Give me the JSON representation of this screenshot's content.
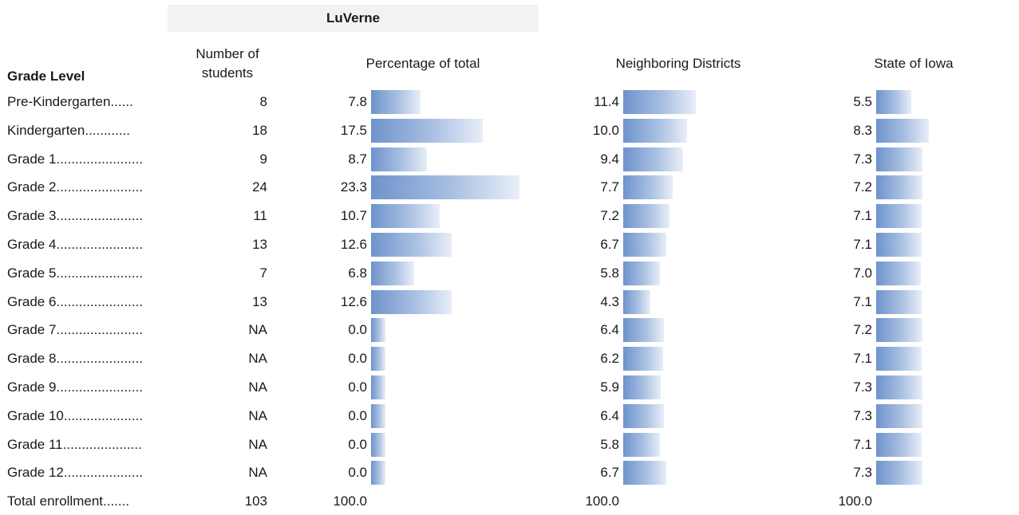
{
  "header": {
    "group_title": "LuVerne",
    "grade_level": "Grade Level",
    "students": "Number of students",
    "percent": "Percentage of total",
    "neighbors": "Neighboring Districts",
    "state": "State of Iowa"
  },
  "bar_color": "#6e93cc",
  "chart_data": {
    "type": "table",
    "columns": [
      "Grade Level",
      "Number of students",
      "Percentage of total",
      "Neighboring Districts",
      "State of Iowa"
    ],
    "rows": [
      {
        "label": "Pre-Kindergarten......",
        "students": "8",
        "pct": 7.8,
        "pct_text": "7.8",
        "neighbor": 11.4,
        "neighbor_text": "11.4",
        "state": 5.5,
        "state_text": "5.5"
      },
      {
        "label": "Kindergarten............",
        "students": "18",
        "pct": 17.5,
        "pct_text": "17.5",
        "neighbor": 10.0,
        "neighbor_text": "10.0",
        "state": 8.3,
        "state_text": "8.3"
      },
      {
        "label": "Grade 1.......................",
        "students": "9",
        "pct": 8.7,
        "pct_text": "8.7",
        "neighbor": 9.4,
        "neighbor_text": "9.4",
        "state": 7.3,
        "state_text": "7.3"
      },
      {
        "label": "Grade 2.......................",
        "students": "24",
        "pct": 23.3,
        "pct_text": "23.3",
        "neighbor": 7.7,
        "neighbor_text": "7.7",
        "state": 7.2,
        "state_text": "7.2"
      },
      {
        "label": "Grade 3.......................",
        "students": "11",
        "pct": 10.7,
        "pct_text": "10.7",
        "neighbor": 7.2,
        "neighbor_text": "7.2",
        "state": 7.1,
        "state_text": "7.1"
      },
      {
        "label": "Grade 4.......................",
        "students": "13",
        "pct": 12.6,
        "pct_text": "12.6",
        "neighbor": 6.7,
        "neighbor_text": "6.7",
        "state": 7.1,
        "state_text": "7.1"
      },
      {
        "label": "Grade 5.......................",
        "students": "7",
        "pct": 6.8,
        "pct_text": "6.8",
        "neighbor": 5.8,
        "neighbor_text": "5.8",
        "state": 7.0,
        "state_text": "7.0"
      },
      {
        "label": "Grade 6.......................",
        "students": "13",
        "pct": 12.6,
        "pct_text": "12.6",
        "neighbor": 4.3,
        "neighbor_text": "4.3",
        "state": 7.1,
        "state_text": "7.1"
      },
      {
        "label": "Grade 7.......................",
        "students": "NA",
        "pct": 0.0,
        "pct_text": "0.0",
        "neighbor": 6.4,
        "neighbor_text": "6.4",
        "state": 7.2,
        "state_text": "7.2"
      },
      {
        "label": "Grade 8.......................",
        "students": "NA",
        "pct": 0.0,
        "pct_text": "0.0",
        "neighbor": 6.2,
        "neighbor_text": "6.2",
        "state": 7.1,
        "state_text": "7.1"
      },
      {
        "label": "Grade 9.......................",
        "students": "NA",
        "pct": 0.0,
        "pct_text": "0.0",
        "neighbor": 5.9,
        "neighbor_text": "5.9",
        "state": 7.3,
        "state_text": "7.3"
      },
      {
        "label": "Grade 10.....................",
        "students": "NA",
        "pct": 0.0,
        "pct_text": "0.0",
        "neighbor": 6.4,
        "neighbor_text": "6.4",
        "state": 7.3,
        "state_text": "7.3"
      },
      {
        "label": "Grade 11.....................",
        "students": "NA",
        "pct": 0.0,
        "pct_text": "0.0",
        "neighbor": 5.8,
        "neighbor_text": "5.8",
        "state": 7.1,
        "state_text": "7.1"
      },
      {
        "label": "Grade 12.....................",
        "students": "NA",
        "pct": 0.0,
        "pct_text": "0.0",
        "neighbor": 6.7,
        "neighbor_text": "6.7",
        "state": 7.3,
        "state_text": "7.3"
      }
    ],
    "total": {
      "label": "Total enrollment.......",
      "students": "103",
      "pct_text": "100.0",
      "neighbor_text": "100.0",
      "state_text": "100.0"
    }
  }
}
